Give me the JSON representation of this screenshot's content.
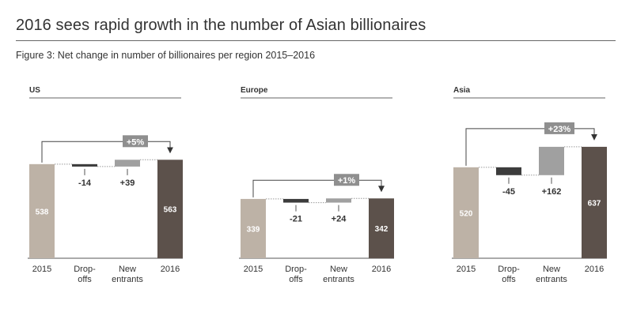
{
  "title": "2016 sees rapid growth in the number of Asian billionaires",
  "subtitle": "Figure 3: Net change in number of billionaires per region 2015–2016",
  "colors": {
    "bar_2015": "#bdb2a6",
    "bar_2016": "#5c514b",
    "dropoffs": "#3c3c3c",
    "new_entrants": "#a0a0a0",
    "badge": "#8f8f8f",
    "axis": "#555555",
    "text": "#333333"
  },
  "chart_data": [
    {
      "type": "bar",
      "subtype": "waterfall",
      "panel_title": "US",
      "categories": [
        "2015",
        "Drop-\noffs",
        "New\nentrants",
        "2016"
      ],
      "values": [
        538,
        -14,
        39,
        563
      ],
      "value_labels": [
        "538",
        "-14",
        "+39",
        "563"
      ],
      "change_label": "+5%"
    },
    {
      "type": "bar",
      "subtype": "waterfall",
      "panel_title": "Europe",
      "categories": [
        "2015",
        "Drop-\noffs",
        "New\nentrants",
        "2016"
      ],
      "values": [
        339,
        -21,
        24,
        342
      ],
      "value_labels": [
        "339",
        "-21",
        "+24",
        "342"
      ],
      "change_label": "+1%"
    },
    {
      "type": "bar",
      "subtype": "waterfall",
      "panel_title": "Asia",
      "categories": [
        "2015",
        "Drop-\noffs",
        "New\nentrants",
        "2016"
      ],
      "values": [
        520,
        -45,
        162,
        637
      ],
      "value_labels": [
        "520",
        "-45",
        "+162",
        "637"
      ],
      "change_label": "+23%"
    }
  ]
}
